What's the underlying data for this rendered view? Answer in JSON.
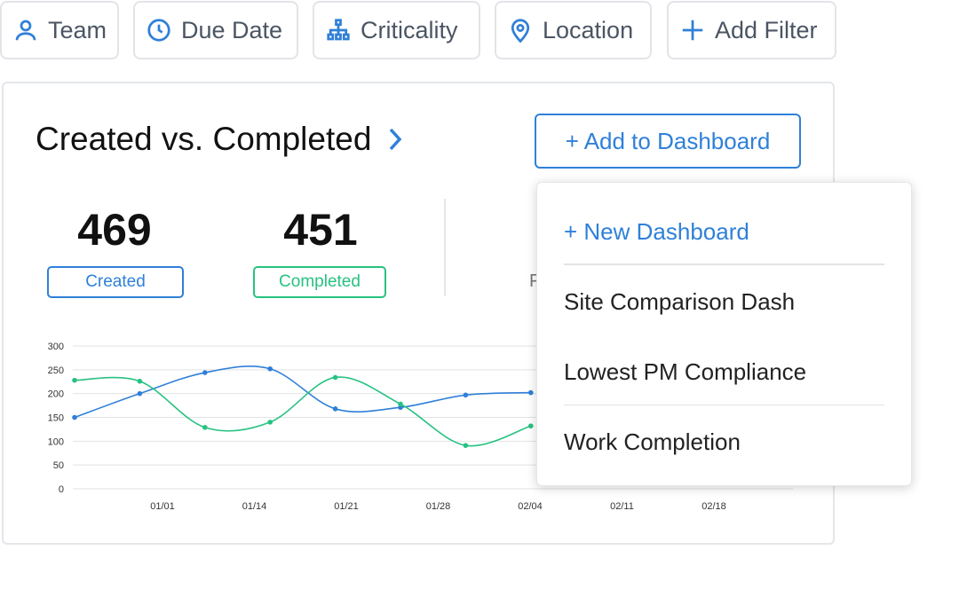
{
  "filters": [
    {
      "label": "Team",
      "icon": "user-icon"
    },
    {
      "label": "Due Date",
      "icon": "clock-icon"
    },
    {
      "label": "Criticality",
      "icon": "hierarchy-icon"
    },
    {
      "label": "Location",
      "icon": "map-pin-icon"
    },
    {
      "label": "Add Filter",
      "icon": "plus-icon"
    }
  ],
  "card": {
    "title": "Created vs. Completed",
    "add_button": "+ Add to Dashboard",
    "created_value": "469",
    "created_label": "Created",
    "completed_value": "451",
    "completed_label": "Completed",
    "hidden_label": "F"
  },
  "menu": {
    "items": [
      "+ New Dashboard",
      "Site Comparison Dash",
      "Lowest PM Compliance",
      "Work Completion"
    ]
  },
  "colors": {
    "accent": "#2f80d8",
    "green": "#27c281"
  },
  "chart_data": {
    "type": "line",
    "yticks": [
      "300",
      "250",
      "200",
      "150",
      "100",
      "50",
      "0"
    ],
    "ylim": [
      0,
      300
    ],
    "xticks": [
      "01/01",
      "01/14",
      "01/21",
      "01/28",
      "02/04",
      "02/11",
      "02/18"
    ],
    "series": [
      {
        "name": "Created",
        "color": "#2f80d8",
        "values": [
          150,
          200,
          244,
          252,
          168,
          171,
          197,
          202
        ]
      },
      {
        "name": "Completed",
        "color": "#27c281",
        "values": [
          228,
          226,
          129,
          140,
          234,
          178,
          91,
          132
        ]
      }
    ]
  }
}
